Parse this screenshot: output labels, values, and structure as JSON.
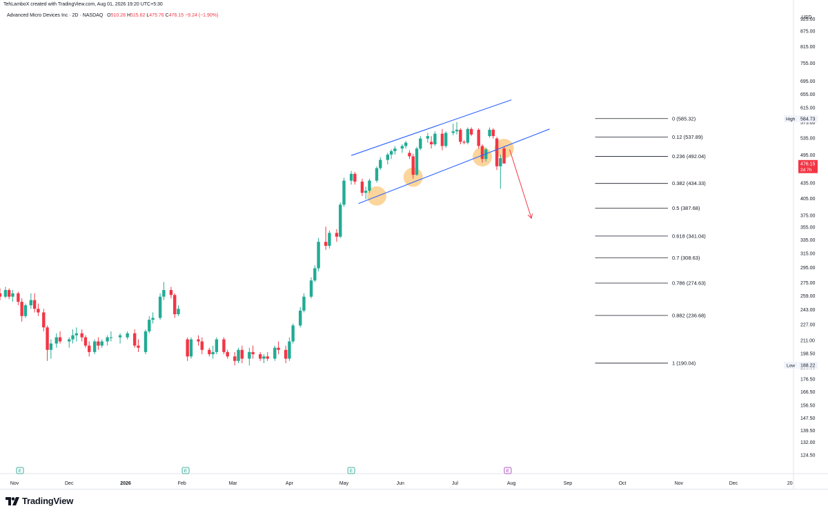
{
  "header": {
    "created_by": "TehLamboX created with TradingView.com, Aug 01, 2026 19:20 UTC+5:30",
    "symbol": "Advanced Micro Devices Inc · 2D · NASDAQ",
    "open_label": "O",
    "open": "510.28",
    "high_label": "H",
    "high": "515.62",
    "low_label": "L",
    "low": "475.76",
    "close_label": "C",
    "close": "476.15",
    "change": "−9.24 (−1.90%)",
    "currency": "USD"
  },
  "footer": {
    "brand": "TradingView"
  },
  "colors": {
    "up": "#22ab94",
    "down": "#f23645",
    "channel": "#2962ff",
    "fib": "#131722",
    "highlight": "#f9c77a",
    "arrow": "#f23645"
  },
  "chart_data": {
    "type": "candlestick",
    "symbol": "Advanced Micro Devices Inc",
    "interval": "2D",
    "exchange": "NASDAQ",
    "y_scale": "log",
    "ylim": [
      118,
      1010
    ],
    "y_ticks": [
      "925.00",
      "875.00",
      "815.00",
      "755.00",
      "695.00",
      "655.00",
      "615.00",
      "575.00",
      "535.00",
      "495.00",
      "465.00",
      "435.00",
      "405.00",
      "375.00",
      "355.00",
      "335.00",
      "315.00",
      "295.00",
      "275.00",
      "259.00",
      "243.00",
      "227.00",
      "211.00",
      "198.50",
      "186.50",
      "176.50",
      "166.50",
      "156.50",
      "147.50",
      "139.50",
      "132.00",
      "124.50"
    ],
    "x_ticks": [
      {
        "label": "Nov",
        "date": "2025-11-01"
      },
      {
        "label": "Dec",
        "date": "2025-12-01"
      },
      {
        "label": "2026",
        "date": "2026-01-01"
      },
      {
        "label": "Feb",
        "date": "2026-02-01"
      },
      {
        "label": "Mar",
        "date": "2026-03-01"
      },
      {
        "label": "Apr",
        "date": "2026-04-01"
      },
      {
        "label": "May",
        "date": "2026-05-01"
      },
      {
        "label": "Jun",
        "date": "2026-06-01"
      },
      {
        "label": "Jul",
        "date": "2026-07-01"
      },
      {
        "label": "Aug",
        "date": "2026-08-01"
      },
      {
        "label": "Sep",
        "date": "2026-09-01"
      },
      {
        "label": "Oct",
        "date": "2026-10-01"
      },
      {
        "label": "Nov",
        "date": "2026-11-01"
      },
      {
        "label": "Dec",
        "date": "2026-12-01"
      },
      {
        "label": "20",
        "date": "2027-01-01"
      }
    ],
    "xlim": [
      "2025-10-24",
      "2027-01-03"
    ],
    "candles": [
      {
        "d": "2025-10-24",
        "o": 262,
        "h": 268,
        "l": 254,
        "c": 258
      },
      {
        "d": "2025-10-27",
        "o": 258,
        "h": 270,
        "l": 256,
        "c": 266
      },
      {
        "d": "2025-10-29",
        "o": 266,
        "h": 268,
        "l": 255,
        "c": 258
      },
      {
        "d": "2025-10-31",
        "o": 258,
        "h": 266,
        "l": 252,
        "c": 262
      },
      {
        "d": "2025-11-03",
        "o": 262,
        "h": 264,
        "l": 248,
        "c": 252
      },
      {
        "d": "2025-11-05",
        "o": 252,
        "h": 256,
        "l": 230,
        "c": 236
      },
      {
        "d": "2025-11-07",
        "o": 236,
        "h": 250,
        "l": 234,
        "c": 248
      },
      {
        "d": "2025-11-10",
        "o": 248,
        "h": 262,
        "l": 244,
        "c": 254
      },
      {
        "d": "2025-11-12",
        "o": 254,
        "h": 262,
        "l": 240,
        "c": 244
      },
      {
        "d": "2025-11-14",
        "o": 244,
        "h": 250,
        "l": 236,
        "c": 240
      },
      {
        "d": "2025-11-17",
        "o": 240,
        "h": 244,
        "l": 220,
        "c": 224
      },
      {
        "d": "2025-11-19",
        "o": 224,
        "h": 226,
        "l": 192,
        "c": 202
      },
      {
        "d": "2025-11-21",
        "o": 202,
        "h": 212,
        "l": 194,
        "c": 208
      },
      {
        "d": "2025-11-24",
        "o": 208,
        "h": 218,
        "l": 204,
        "c": 214
      },
      {
        "d": "2025-11-26",
        "o": 214,
        "h": 220,
        "l": 208,
        "c": 210
      },
      {
        "d": "2025-12-01",
        "o": 210,
        "h": 214,
        "l": 204,
        "c": 212
      },
      {
        "d": "2025-12-03",
        "o": 212,
        "h": 222,
        "l": 208,
        "c": 216
      },
      {
        "d": "2025-12-05",
        "o": 216,
        "h": 224,
        "l": 210,
        "c": 218
      },
      {
        "d": "2025-12-08",
        "o": 218,
        "h": 222,
        "l": 210,
        "c": 214
      },
      {
        "d": "2025-12-10",
        "o": 214,
        "h": 216,
        "l": 204,
        "c": 206
      },
      {
        "d": "2025-12-12",
        "o": 206,
        "h": 210,
        "l": 196,
        "c": 200
      },
      {
        "d": "2025-12-15",
        "o": 200,
        "h": 212,
        "l": 198,
        "c": 210
      },
      {
        "d": "2025-12-17",
        "o": 210,
        "h": 214,
        "l": 202,
        "c": 206
      },
      {
        "d": "2025-12-19",
        "o": 206,
        "h": 212,
        "l": 204,
        "c": 210
      },
      {
        "d": "2025-12-22",
        "o": 210,
        "h": 216,
        "l": 206,
        "c": 214
      },
      {
        "d": "2025-12-24",
        "o": 214,
        "h": 220,
        "l": 210,
        "c": 214
      },
      {
        "d": "2025-12-29",
        "o": 214,
        "h": 218,
        "l": 208,
        "c": 216
      },
      {
        "d": "2026-01-02",
        "o": 214,
        "h": 220,
        "l": 212,
        "c": 218
      },
      {
        "d": "2026-01-06",
        "o": 218,
        "h": 222,
        "l": 204,
        "c": 206
      },
      {
        "d": "2026-01-08",
        "o": 206,
        "h": 212,
        "l": 200,
        "c": 204
      },
      {
        "d": "2026-01-12",
        "o": 200,
        "h": 222,
        "l": 198,
        "c": 220
      },
      {
        "d": "2026-01-14",
        "o": 220,
        "h": 236,
        "l": 218,
        "c": 232
      },
      {
        "d": "2026-01-16",
        "o": 232,
        "h": 240,
        "l": 228,
        "c": 234
      },
      {
        "d": "2026-01-20",
        "o": 234,
        "h": 262,
        "l": 232,
        "c": 258
      },
      {
        "d": "2026-01-22",
        "o": 258,
        "h": 276,
        "l": 254,
        "c": 266
      },
      {
        "d": "2026-01-26",
        "o": 266,
        "h": 270,
        "l": 256,
        "c": 260
      },
      {
        "d": "2026-01-28",
        "o": 260,
        "h": 262,
        "l": 234,
        "c": 238
      },
      {
        "d": "2026-01-30",
        "o": 238,
        "h": 248,
        "l": 236,
        "c": 244
      },
      {
        "d": "2026-02-04",
        "o": 212,
        "h": 214,
        "l": 192,
        "c": 196
      },
      {
        "d": "2026-02-06",
        "o": 196,
        "h": 214,
        "l": 194,
        "c": 212
      },
      {
        "d": "2026-02-10",
        "o": 212,
        "h": 216,
        "l": 206,
        "c": 210
      },
      {
        "d": "2026-02-12",
        "o": 210,
        "h": 214,
        "l": 198,
        "c": 202
      },
      {
        "d": "2026-02-16",
        "o": 202,
        "h": 204,
        "l": 196,
        "c": 198
      },
      {
        "d": "2026-02-18",
        "o": 198,
        "h": 206,
        "l": 194,
        "c": 200
      },
      {
        "d": "2026-02-20",
        "o": 200,
        "h": 214,
        "l": 198,
        "c": 212
      },
      {
        "d": "2026-02-24",
        "o": 212,
        "h": 214,
        "l": 198,
        "c": 200
      },
      {
        "d": "2026-02-26",
        "o": 200,
        "h": 202,
        "l": 194,
        "c": 196
      },
      {
        "d": "2026-03-02",
        "o": 196,
        "h": 200,
        "l": 188,
        "c": 192
      },
      {
        "d": "2026-03-04",
        "o": 192,
        "h": 204,
        "l": 190,
        "c": 202
      },
      {
        "d": "2026-03-06",
        "o": 202,
        "h": 206,
        "l": 190,
        "c": 194
      },
      {
        "d": "2026-03-10",
        "o": 194,
        "h": 204,
        "l": 188,
        "c": 200
      },
      {
        "d": "2026-03-12",
        "o": 200,
        "h": 206,
        "l": 194,
        "c": 198
      },
      {
        "d": "2026-03-16",
        "o": 198,
        "h": 200,
        "l": 192,
        "c": 194
      },
      {
        "d": "2026-03-18",
        "o": 194,
        "h": 198,
        "l": 190,
        "c": 196
      },
      {
        "d": "2026-03-20",
        "o": 196,
        "h": 200,
        "l": 192,
        "c": 194
      },
      {
        "d": "2026-03-24",
        "o": 194,
        "h": 206,
        "l": 192,
        "c": 204
      },
      {
        "d": "2026-03-26",
        "o": 204,
        "h": 210,
        "l": 198,
        "c": 202
      },
      {
        "d": "2026-03-30",
        "o": 202,
        "h": 206,
        "l": 190,
        "c": 194
      },
      {
        "d": "2026-04-01",
        "o": 194,
        "h": 214,
        "l": 192,
        "c": 210
      },
      {
        "d": "2026-04-03",
        "o": 210,
        "h": 228,
        "l": 208,
        "c": 226
      },
      {
        "d": "2026-04-07",
        "o": 226,
        "h": 246,
        "l": 224,
        "c": 242
      },
      {
        "d": "2026-04-09",
        "o": 242,
        "h": 262,
        "l": 240,
        "c": 258
      },
      {
        "d": "2026-04-13",
        "o": 258,
        "h": 282,
        "l": 256,
        "c": 278
      },
      {
        "d": "2026-04-15",
        "o": 278,
        "h": 298,
        "l": 276,
        "c": 294
      },
      {
        "d": "2026-04-17",
        "o": 294,
        "h": 338,
        "l": 290,
        "c": 332
      },
      {
        "d": "2026-04-21",
        "o": 332,
        "h": 356,
        "l": 320,
        "c": 326
      },
      {
        "d": "2026-04-23",
        "o": 326,
        "h": 350,
        "l": 322,
        "c": 346
      },
      {
        "d": "2026-04-27",
        "o": 346,
        "h": 352,
        "l": 332,
        "c": 340
      },
      {
        "d": "2026-04-29",
        "o": 340,
        "h": 398,
        "l": 338,
        "c": 394
      },
      {
        "d": "2026-05-01",
        "o": 394,
        "h": 446,
        "l": 390,
        "c": 440
      },
      {
        "d": "2026-05-05",
        "o": 440,
        "h": 460,
        "l": 432,
        "c": 454
      },
      {
        "d": "2026-05-07",
        "o": 454,
        "h": 458,
        "l": 432,
        "c": 438
      },
      {
        "d": "2026-05-11",
        "o": 438,
        "h": 444,
        "l": 410,
        "c": 416
      },
      {
        "d": "2026-05-13",
        "o": 416,
        "h": 428,
        "l": 404,
        "c": 420
      },
      {
        "d": "2026-05-15",
        "o": 420,
        "h": 444,
        "l": 416,
        "c": 440
      },
      {
        "d": "2026-05-19",
        "o": 440,
        "h": 470,
        "l": 436,
        "c": 466
      },
      {
        "d": "2026-05-21",
        "o": 466,
        "h": 490,
        "l": 462,
        "c": 484
      },
      {
        "d": "2026-05-25",
        "o": 484,
        "h": 500,
        "l": 474,
        "c": 496
      },
      {
        "d": "2026-05-27",
        "o": 496,
        "h": 508,
        "l": 486,
        "c": 504
      },
      {
        "d": "2026-05-29",
        "o": 504,
        "h": 516,
        "l": 496,
        "c": 510
      },
      {
        "d": "2026-06-02",
        "o": 510,
        "h": 520,
        "l": 500,
        "c": 516
      },
      {
        "d": "2026-06-04",
        "o": 516,
        "h": 528,
        "l": 510,
        "c": 524
      },
      {
        "d": "2026-06-06",
        "o": 500,
        "h": 506,
        "l": 486,
        "c": 492
      },
      {
        "d": "2026-06-08",
        "o": 492,
        "h": 498,
        "l": 444,
        "c": 452
      },
      {
        "d": "2026-06-10",
        "o": 452,
        "h": 514,
        "l": 450,
        "c": 510
      },
      {
        "d": "2026-06-12",
        "o": 510,
        "h": 540,
        "l": 506,
        "c": 534
      },
      {
        "d": "2026-06-16",
        "o": 534,
        "h": 548,
        "l": 524,
        "c": 540
      },
      {
        "d": "2026-06-18",
        "o": 526,
        "h": 540,
        "l": 510,
        "c": 520
      },
      {
        "d": "2026-06-20",
        "o": 520,
        "h": 552,
        "l": 516,
        "c": 546
      },
      {
        "d": "2026-06-24",
        "o": 546,
        "h": 558,
        "l": 506,
        "c": 516
      },
      {
        "d": "2026-06-26",
        "o": 516,
        "h": 552,
        "l": 512,
        "c": 548
      },
      {
        "d": "2026-06-30",
        "o": 548,
        "h": 572,
        "l": 542,
        "c": 552
      },
      {
        "d": "2026-07-02",
        "o": 552,
        "h": 576,
        "l": 544,
        "c": 556
      },
      {
        "d": "2026-07-04",
        "o": 556,
        "h": 560,
        "l": 520,
        "c": 526
      },
      {
        "d": "2026-07-06",
        "o": 526,
        "h": 530,
        "l": 520,
        "c": 524
      },
      {
        "d": "2026-07-08",
        "o": 524,
        "h": 562,
        "l": 520,
        "c": 558
      },
      {
        "d": "2026-07-10",
        "o": 558,
        "h": 562,
        "l": 540,
        "c": 544
      },
      {
        "d": "2026-07-14",
        "o": 556,
        "h": 560,
        "l": 510,
        "c": 516
      },
      {
        "d": "2026-07-16",
        "o": 516,
        "h": 520,
        "l": 478,
        "c": 486
      },
      {
        "d": "2026-07-18",
        "o": 486,
        "h": 512,
        "l": 480,
        "c": 508
      },
      {
        "d": "2026-07-20",
        "o": 540,
        "h": 562,
        "l": 536,
        "c": 556
      },
      {
        "d": "2026-07-22",
        "o": 556,
        "h": 560,
        "l": 534,
        "c": 540
      },
      {
        "d": "2026-07-24",
        "o": 534,
        "h": 538,
        "l": 462,
        "c": 470
      },
      {
        "d": "2026-07-26",
        "o": 470,
        "h": 496,
        "l": 424,
        "c": 488
      },
      {
        "d": "2026-07-28",
        "o": 510.28,
        "h": 515.62,
        "l": 475.76,
        "c": 476.15
      }
    ],
    "fib_retracement": [
      {
        "level": "0",
        "price": 585.32,
        "label": "0 (585.32)"
      },
      {
        "level": "0.12",
        "price": 537.89,
        "label": "0.12 (537.89)"
      },
      {
        "level": "0.236",
        "price": 492.04,
        "label": "0.236 (492.04)"
      },
      {
        "level": "0.382",
        "price": 434.33,
        "label": "0.382 (434.33)"
      },
      {
        "level": "0.5",
        "price": 387.68,
        "label": "0.5 (387.68)"
      },
      {
        "level": "0.618",
        "price": 341.04,
        "label": "0.618 (341.04)"
      },
      {
        "level": "0.7",
        "price": 308.63,
        "label": "0.7 (308.63)"
      },
      {
        "level": "0.786",
        "price": 274.63,
        "label": "0.786 (274.63)"
      },
      {
        "level": "0.882",
        "price": 236.68,
        "label": "0.882 (236.68)"
      },
      {
        "level": "1",
        "price": 190.04,
        "label": "1 (190.04)"
      }
    ],
    "fib_start_date": "2026-09-16",
    "fib_end_date": "2026-10-26",
    "channel": {
      "upper": [
        {
          "d": "2026-05-05",
          "p": 494
        },
        {
          "d": "2026-08-01",
          "p": 638
        }
      ],
      "lower": [
        {
          "d": "2026-05-09",
          "p": 396
        },
        {
          "d": "2026-08-22",
          "p": 558
        }
      ]
    },
    "highlights": [
      {
        "d": "2026-05-19",
        "p": 410
      },
      {
        "d": "2026-06-08",
        "p": 447
      },
      {
        "d": "2026-07-16",
        "p": 491
      },
      {
        "d": "2026-07-28",
        "p": 510
      }
    ],
    "arrow": {
      "from": {
        "d": "2026-07-31",
        "p": 508
      },
      "to": {
        "d": "2026-08-12",
        "p": 370
      }
    },
    "price_badges": {
      "high": {
        "label": "High",
        "value": "584.73"
      },
      "low": {
        "label": "Low",
        "value": "188.22"
      },
      "last": {
        "value": "476.15",
        "countdown": "2d 7h"
      }
    },
    "event_markers": [
      {
        "d": "2025-11-04",
        "text": "E"
      },
      {
        "d": "2026-02-03",
        "text": "E"
      },
      {
        "d": "2026-05-05",
        "text": "E"
      },
      {
        "d": "2026-07-30",
        "text": "E"
      }
    ]
  }
}
